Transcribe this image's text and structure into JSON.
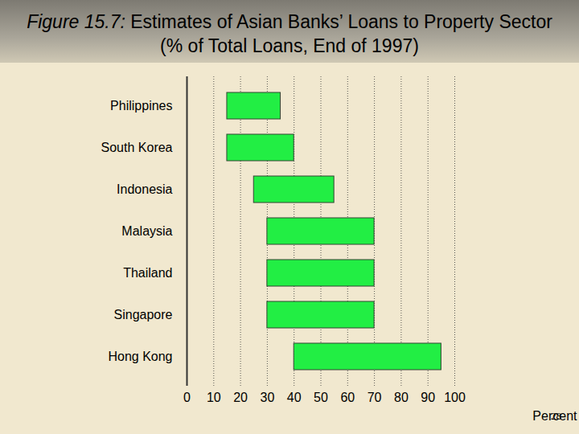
{
  "chart_data": {
    "type": "bar",
    "orientation": "horizontal",
    "title": "Figure 15.7: Estimates of Asian Banks’ Loans to Property Sector (% of Total Loans, End of 1997)",
    "x_label": "Percent",
    "categories": [
      "Philippines",
      "South Korea",
      "Indonesia",
      "Malaysia",
      "Thailand",
      "Singapore",
      "Hong Kong"
    ],
    "values": [
      [
        15,
        35
      ],
      [
        15,
        40
      ],
      [
        25,
        55
      ],
      [
        30,
        70
      ],
      [
        30,
        70
      ],
      [
        30,
        70
      ],
      [
        40,
        95
      ]
    ],
    "color": "#22ee44",
    "xlim": [
      0,
      100
    ],
    "xticks": [
      0,
      10,
      20,
      30,
      40,
      50,
      60,
      70,
      80,
      90,
      100
    ],
    "grid": true,
    "footer": "28"
  }
}
